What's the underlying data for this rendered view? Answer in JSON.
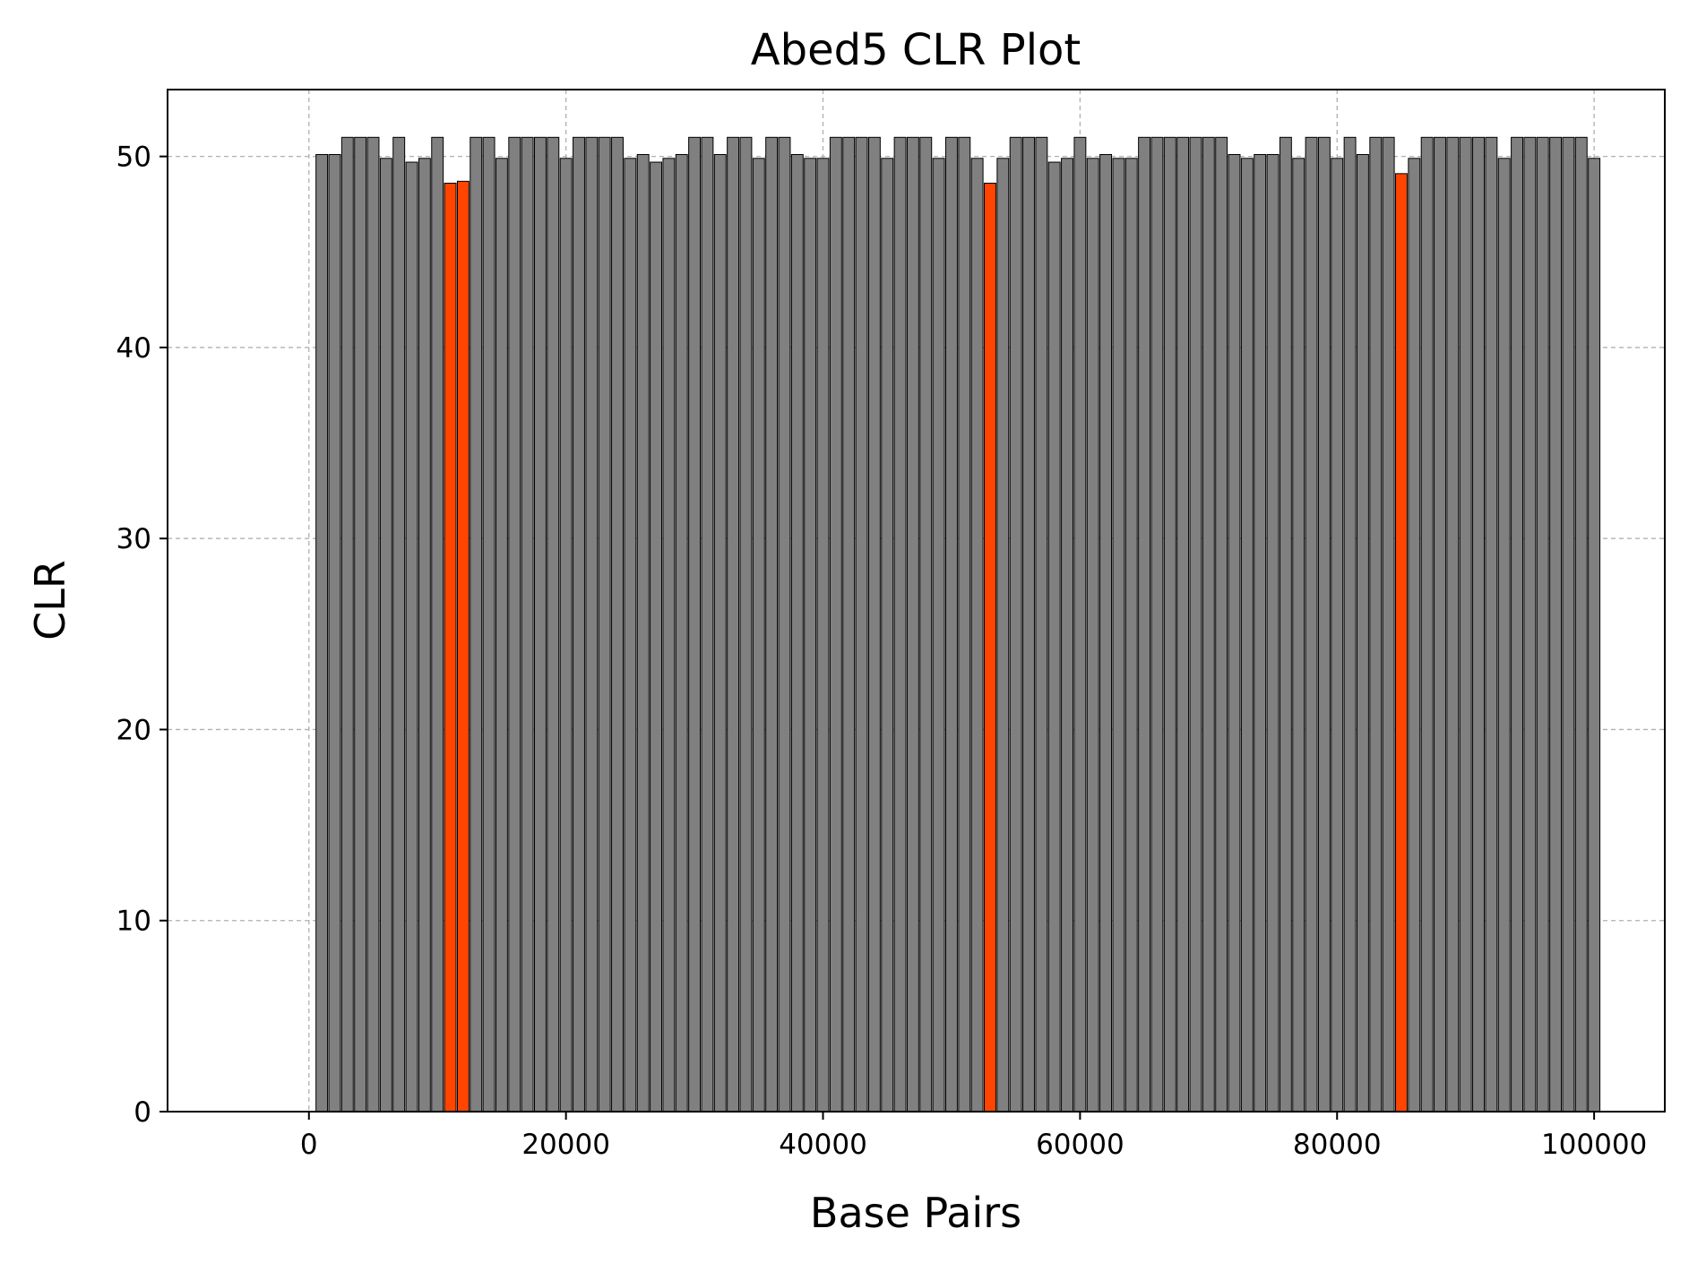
{
  "chart_data": {
    "type": "bar",
    "title": "Abed5 CLR Plot",
    "xlabel": "Base Pairs",
    "ylabel": "CLR",
    "xlim": [
      -11000,
      105500
    ],
    "ylim": [
      0,
      53.5
    ],
    "xticks": [
      0,
      20000,
      40000,
      60000,
      80000,
      100000
    ],
    "xtick_labels": [
      "0",
      "20000",
      "40000",
      "60000",
      "80000",
      "100000"
    ],
    "yticks": [
      0,
      10,
      20,
      30,
      40,
      50
    ],
    "ytick_labels": [
      "0",
      "10",
      "20",
      "30",
      "40",
      "50"
    ],
    "grid": true,
    "bar_width": 900,
    "colors": {
      "normal": "#808080",
      "highlight": "#ff4500",
      "edge": "#000000"
    },
    "series": [
      {
        "x": [
          1000,
          2000,
          3000,
          4000,
          5000,
          6000,
          7000,
          8000,
          9000,
          10000,
          11000,
          12000,
          13000,
          14000,
          15000,
          16000,
          17000,
          18000,
          19000,
          20000,
          21000,
          22000,
          23000,
          24000,
          25000,
          26000,
          27000,
          28000,
          29000,
          30000,
          31000,
          32000,
          33000,
          34000,
          35000,
          36000,
          37000,
          38000,
          39000,
          40000,
          41000,
          42000,
          43000,
          44000,
          45000,
          46000,
          47000,
          48000,
          49000,
          50000,
          51000,
          52000,
          53000,
          54000,
          55000,
          56000,
          57000,
          58000,
          59000,
          60000,
          61000,
          62000,
          63000,
          64000,
          65000,
          66000,
          67000,
          68000,
          69000,
          70000,
          71000,
          72000,
          73000,
          74000,
          75000,
          76000,
          77000,
          78000,
          79000,
          80000,
          81000,
          82000,
          83000,
          84000,
          85000,
          86000,
          87000,
          88000,
          89000,
          90000,
          91000,
          92000,
          93000,
          94000,
          95000,
          96000,
          97000,
          98000,
          99000,
          100000
        ],
        "values": [
          50.1,
          50.1,
          51.0,
          51.0,
          51.0,
          49.9,
          51.0,
          49.7,
          49.9,
          51.0,
          48.6,
          48.7,
          51.0,
          51.0,
          49.9,
          51.0,
          51.0,
          51.0,
          51.0,
          49.9,
          51.0,
          51.0,
          51.0,
          51.0,
          49.9,
          50.1,
          49.7,
          49.9,
          50.1,
          51.0,
          51.0,
          50.1,
          51.0,
          51.0,
          49.9,
          51.0,
          51.0,
          50.1,
          49.9,
          49.9,
          51.0,
          51.0,
          51.0,
          51.0,
          49.9,
          51.0,
          51.0,
          51.0,
          49.9,
          51.0,
          51.0,
          49.9,
          48.6,
          49.9,
          51.0,
          51.0,
          51.0,
          49.7,
          49.9,
          51.0,
          49.9,
          50.1,
          49.9,
          49.9,
          51.0,
          51.0,
          51.0,
          51.0,
          51.0,
          51.0,
          51.0,
          50.1,
          49.9,
          50.1,
          50.1,
          51.0,
          49.9,
          51.0,
          51.0,
          49.9,
          51.0,
          50.1,
          51.0,
          51.0,
          49.1,
          49.9,
          51.0,
          51.0,
          51.0,
          51.0,
          51.0,
          51.0,
          49.9,
          51.0,
          51.0,
          51.0,
          51.0,
          51.0,
          51.0,
          49.9
        ],
        "highlight_indices": [
          10,
          11,
          52,
          84
        ]
      }
    ]
  }
}
